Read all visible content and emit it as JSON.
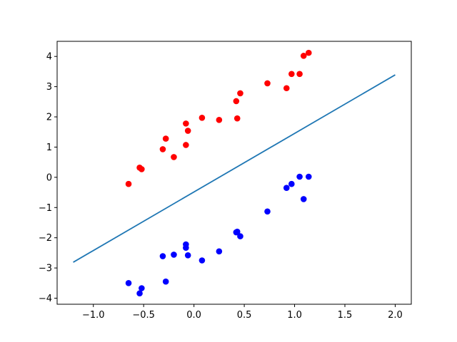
{
  "chart_data": {
    "type": "scatter",
    "title": "",
    "xlabel": "",
    "ylabel": "",
    "xlim": [
      -1.36,
      2.16
    ],
    "ylim": [
      -4.2,
      4.5
    ],
    "grid": false,
    "x_ticks": [
      {
        "value": -1.0,
        "label": "−1.0"
      },
      {
        "value": -0.5,
        "label": "−0.5"
      },
      {
        "value": 0.0,
        "label": "0.0"
      },
      {
        "value": 0.5,
        "label": "0.5"
      },
      {
        "value": 1.0,
        "label": "1.0"
      },
      {
        "value": 1.5,
        "label": "1.5"
      },
      {
        "value": 2.0,
        "label": "2.0"
      }
    ],
    "y_ticks": [
      {
        "value": -4,
        "label": "−4"
      },
      {
        "value": -3,
        "label": "−3"
      },
      {
        "value": -2,
        "label": "−2"
      },
      {
        "value": -1,
        "label": "−1"
      },
      {
        "value": 0,
        "label": "0"
      },
      {
        "value": 1,
        "label": "1"
      },
      {
        "value": 2,
        "label": "2"
      },
      {
        "value": 3,
        "label": "3"
      },
      {
        "value": 4,
        "label": "4"
      }
    ],
    "series": [
      {
        "type": "scatter",
        "color": "#ff0000",
        "points": [
          [
            -0.65,
            -0.22
          ],
          [
            -0.54,
            0.32
          ],
          [
            -0.52,
            0.27
          ],
          [
            -0.31,
            0.93
          ],
          [
            -0.28,
            1.28
          ],
          [
            -0.2,
            0.67
          ],
          [
            -0.08,
            1.78
          ],
          [
            -0.08,
            1.07
          ],
          [
            -0.06,
            1.54
          ],
          [
            0.08,
            1.97
          ],
          [
            0.25,
            1.9
          ],
          [
            0.42,
            2.52
          ],
          [
            0.43,
            1.95
          ],
          [
            0.46,
            2.78
          ],
          [
            0.73,
            3.11
          ],
          [
            0.92,
            2.95
          ],
          [
            0.97,
            3.42
          ],
          [
            1.05,
            3.42
          ],
          [
            1.09,
            4.02
          ],
          [
            1.14,
            4.12
          ]
        ]
      },
      {
        "type": "scatter",
        "color": "#0000ff",
        "points": [
          [
            -0.65,
            -3.5
          ],
          [
            -0.54,
            -3.84
          ],
          [
            -0.52,
            -3.67
          ],
          [
            -0.31,
            -2.61
          ],
          [
            -0.28,
            -3.45
          ],
          [
            -0.2,
            -2.56
          ],
          [
            -0.08,
            -2.22
          ],
          [
            -0.08,
            -2.33
          ],
          [
            -0.06,
            -2.58
          ],
          [
            0.08,
            -2.75
          ],
          [
            0.25,
            -2.45
          ],
          [
            0.42,
            -1.82
          ],
          [
            0.43,
            -1.8
          ],
          [
            0.46,
            -1.95
          ],
          [
            0.73,
            -1.13
          ],
          [
            0.92,
            -0.35
          ],
          [
            0.97,
            -0.22
          ],
          [
            1.05,
            0.02
          ],
          [
            1.09,
            -0.72
          ],
          [
            1.14,
            0.02
          ]
        ]
      },
      {
        "type": "line",
        "color": "#1f77b4",
        "points": [
          [
            -1.2,
            -2.81
          ],
          [
            2.0,
            3.39
          ]
        ]
      }
    ]
  }
}
